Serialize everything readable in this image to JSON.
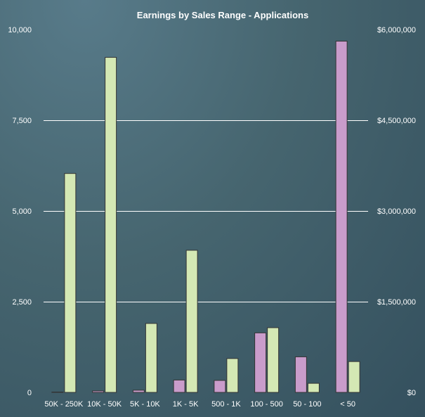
{
  "chart_data": {
    "type": "bar",
    "title": "Earnings by Sales Range - Applications",
    "xlabel": "",
    "ylabel": "",
    "categories": [
      "50K - 250K",
      "10K - 50K",
      "5K - 10K",
      "1K - 5K",
      "500 - 1K",
      "100 - 500",
      "50 - 100",
      "< 50"
    ],
    "series": [
      {
        "axis": "left",
        "color": "#c99ccb",
        "values": [
          10,
          40,
          60,
          340,
          330,
          1640,
          980,
          9680
        ]
      },
      {
        "axis": "right",
        "color": "#d4e8b4",
        "values": [
          3620000,
          5540000,
          1140000,
          2350000,
          560000,
          1070000,
          150000,
          510000
        ]
      }
    ],
    "y_left": {
      "ylim": [
        0,
        10000
      ],
      "ticks": [
        0,
        2500,
        5000,
        7500,
        10000
      ],
      "tick_labels": [
        "0",
        "2,500",
        "5,000",
        "7,500",
        "10,000"
      ]
    },
    "y_right": {
      "ylim": [
        0,
        6000000
      ],
      "ticks": [
        0,
        1500000,
        3000000,
        4500000,
        6000000
      ],
      "tick_labels": [
        "$0",
        "$1,500,000",
        "$3,000,000",
        "$4,500,000",
        "$6,000,000"
      ]
    },
    "grid": true,
    "legend": "none"
  }
}
